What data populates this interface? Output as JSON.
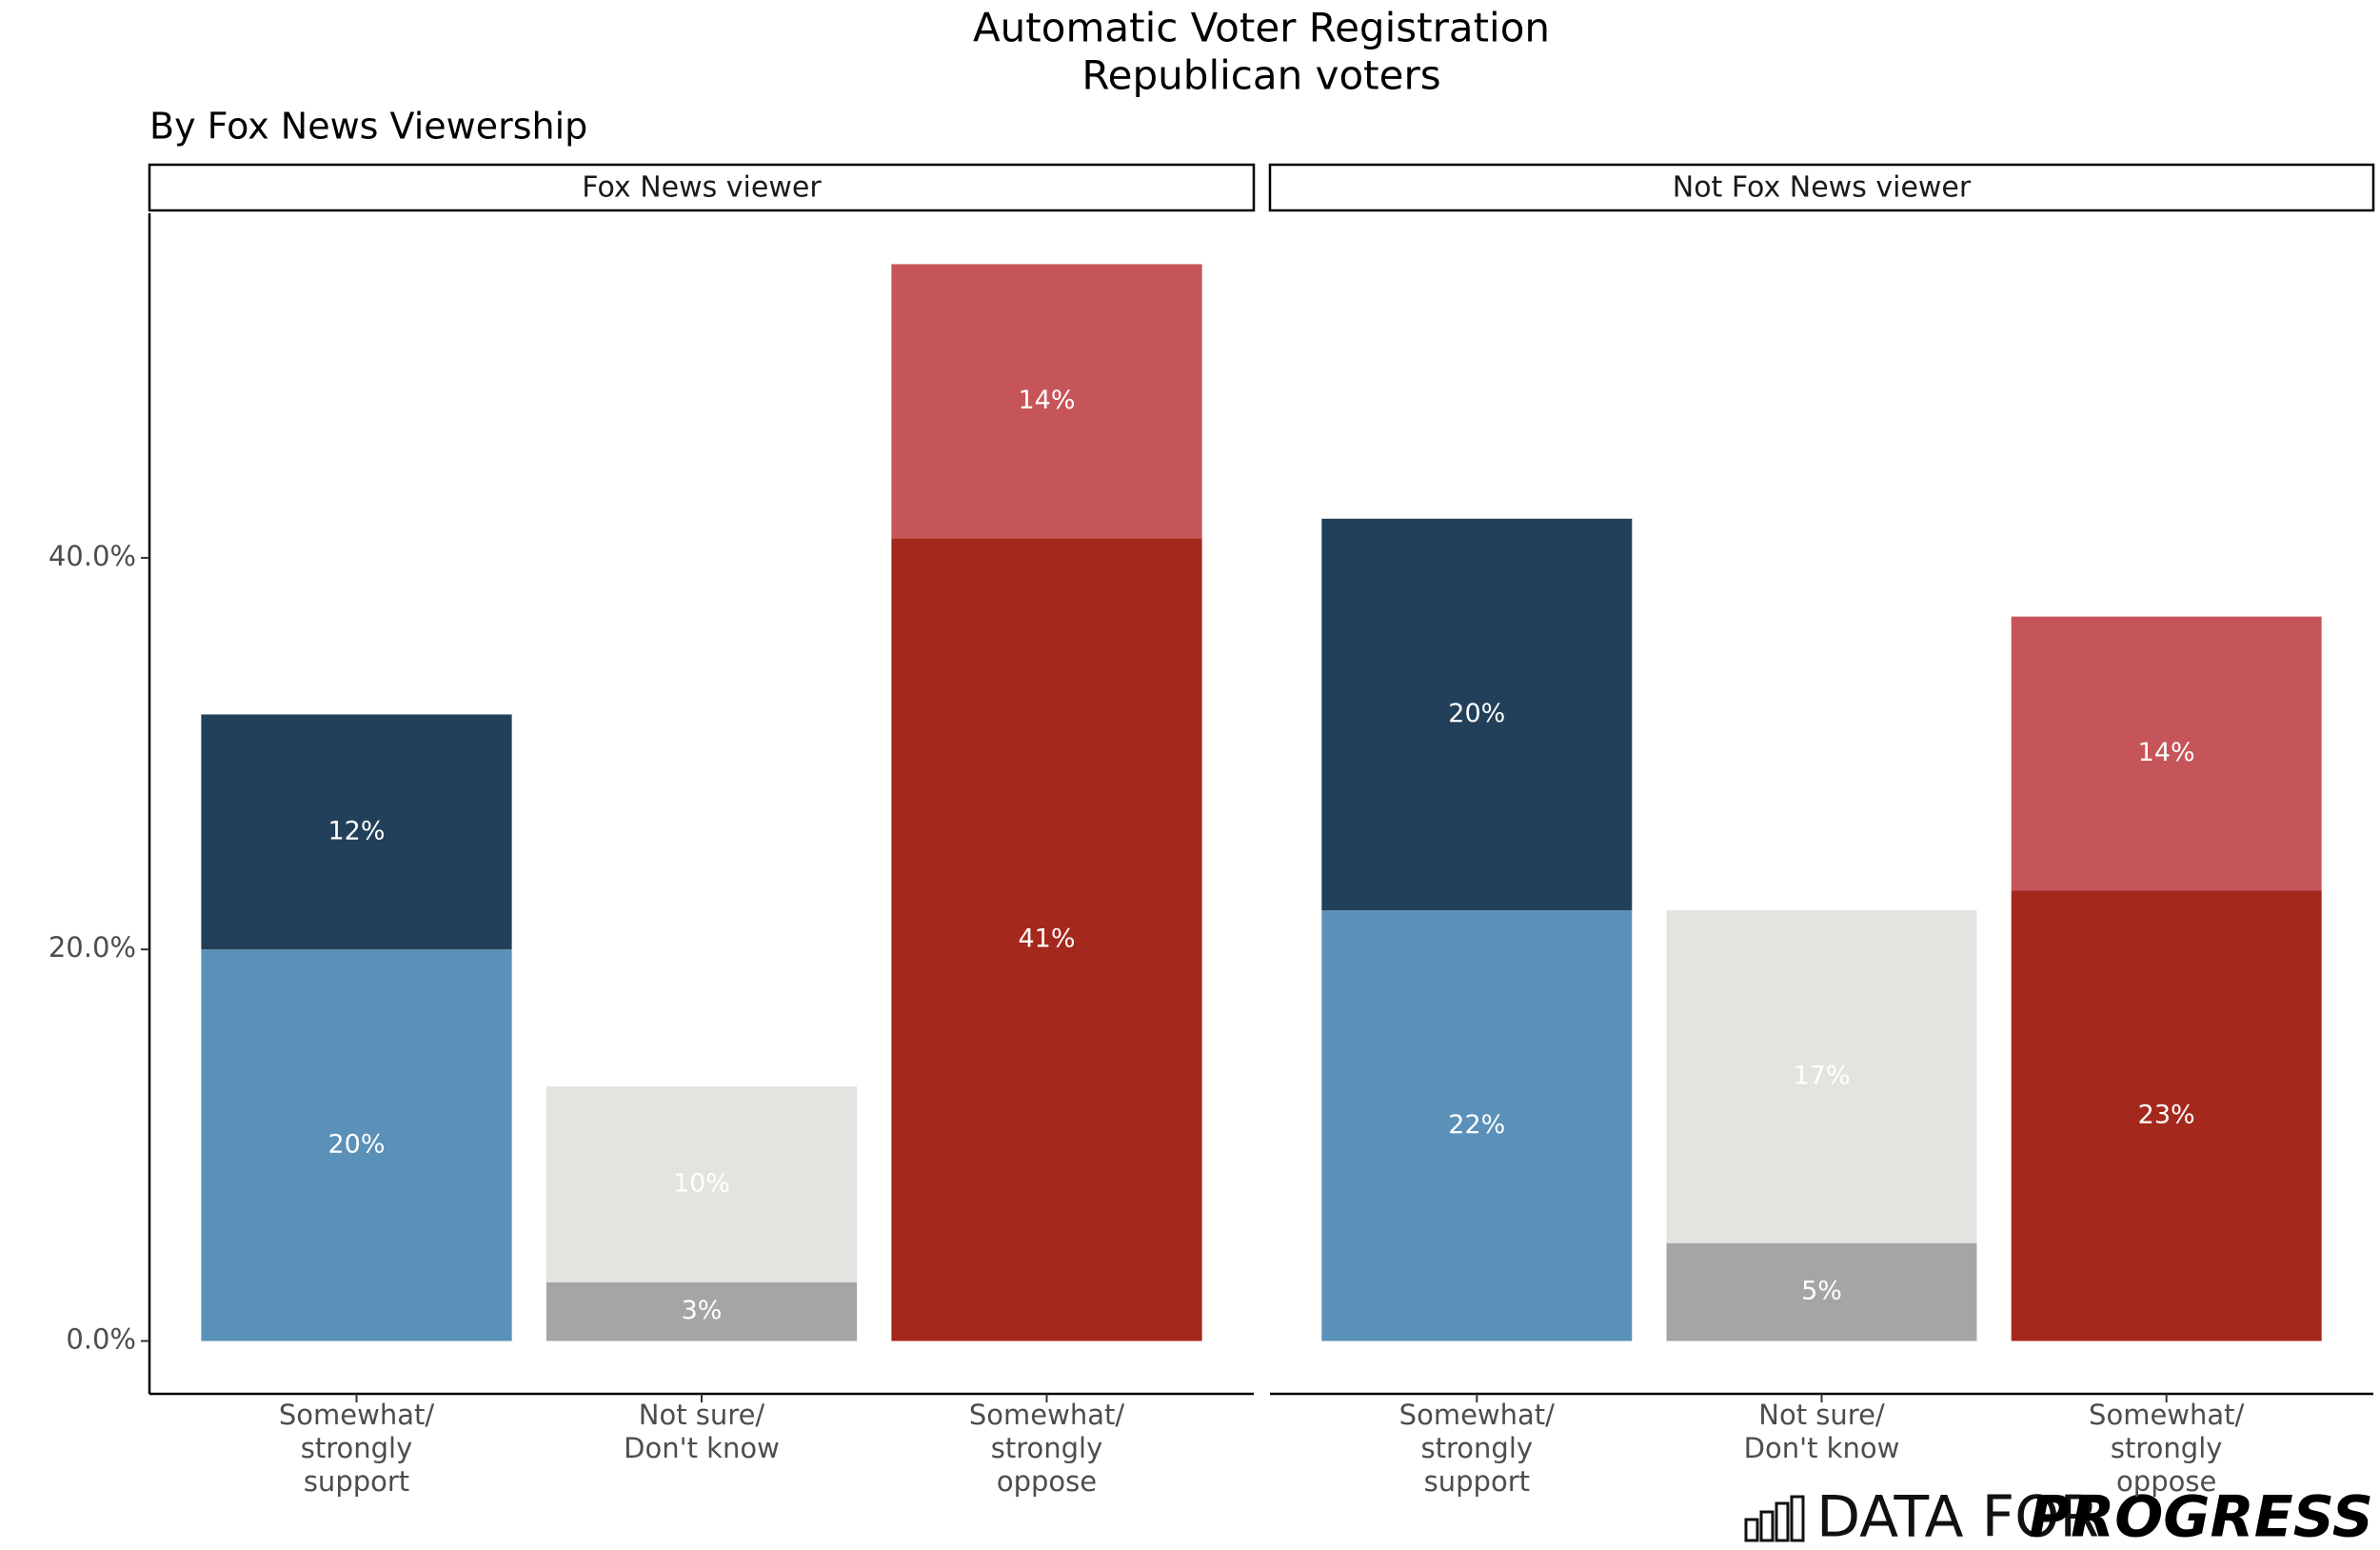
{
  "title": [
    "Automatic Voter Registration",
    "Republican voters"
  ],
  "subtitle": "By Fox News Viewership",
  "logo": {
    "text": "DATA FOR",
    "bold": "PROGRESS"
  },
  "chart_data": [
    {
      "type": "bar",
      "stacked": true,
      "panel": "Fox News viewer",
      "categories": [
        "Somewhat/\nstrongly\nsupport",
        "Not sure/\nDon't know",
        "Somewhat/\nstrongly\noppose"
      ],
      "series": [
        {
          "colors": [
            "#5b90b8",
            "#a5a5a5",
            "#a5281c"
          ],
          "values": [
            20,
            3,
            41
          ],
          "value_labels": [
            "20%",
            "3%",
            "41%"
          ]
        },
        {
          "colors": [
            "#22405a",
            "#e3e3e0",
            "#c6555a"
          ],
          "values": [
            12,
            10,
            14
          ],
          "value_labels": [
            "12%",
            "10%",
            "14%"
          ]
        }
      ],
      "ylim": [
        -2.7,
        57.6
      ],
      "yticks": [
        {
          "value": 0,
          "label": "0.0%"
        },
        {
          "value": 20,
          "label": "20.0%"
        },
        {
          "value": 40,
          "label": "40.0%"
        }
      ]
    },
    {
      "type": "bar",
      "stacked": true,
      "panel": "Not Fox News viewer",
      "categories": [
        "Somewhat/\nstrongly\nsupport",
        "Not sure/\nDon't know",
        "Somewhat/\nstrongly\noppose"
      ],
      "series": [
        {
          "colors": [
            "#5b90b8",
            "#a5a5a5",
            "#a5281c"
          ],
          "values": [
            22,
            5,
            23
          ],
          "value_labels": [
            "22%",
            "5%",
            "23%"
          ]
        },
        {
          "colors": [
            "#22405a",
            "#e3e3e0",
            "#c6555a"
          ],
          "values": [
            20,
            17,
            14
          ],
          "value_labels": [
            "20%",
            "17%",
            "14%"
          ]
        }
      ],
      "ylim": [
        -2.7,
        57.6
      ],
      "yticks": [
        {
          "value": 0,
          "label": "0.0%"
        },
        {
          "value": 20,
          "label": "20.0%"
        },
        {
          "value": 40,
          "label": "40.0%"
        }
      ]
    }
  ]
}
